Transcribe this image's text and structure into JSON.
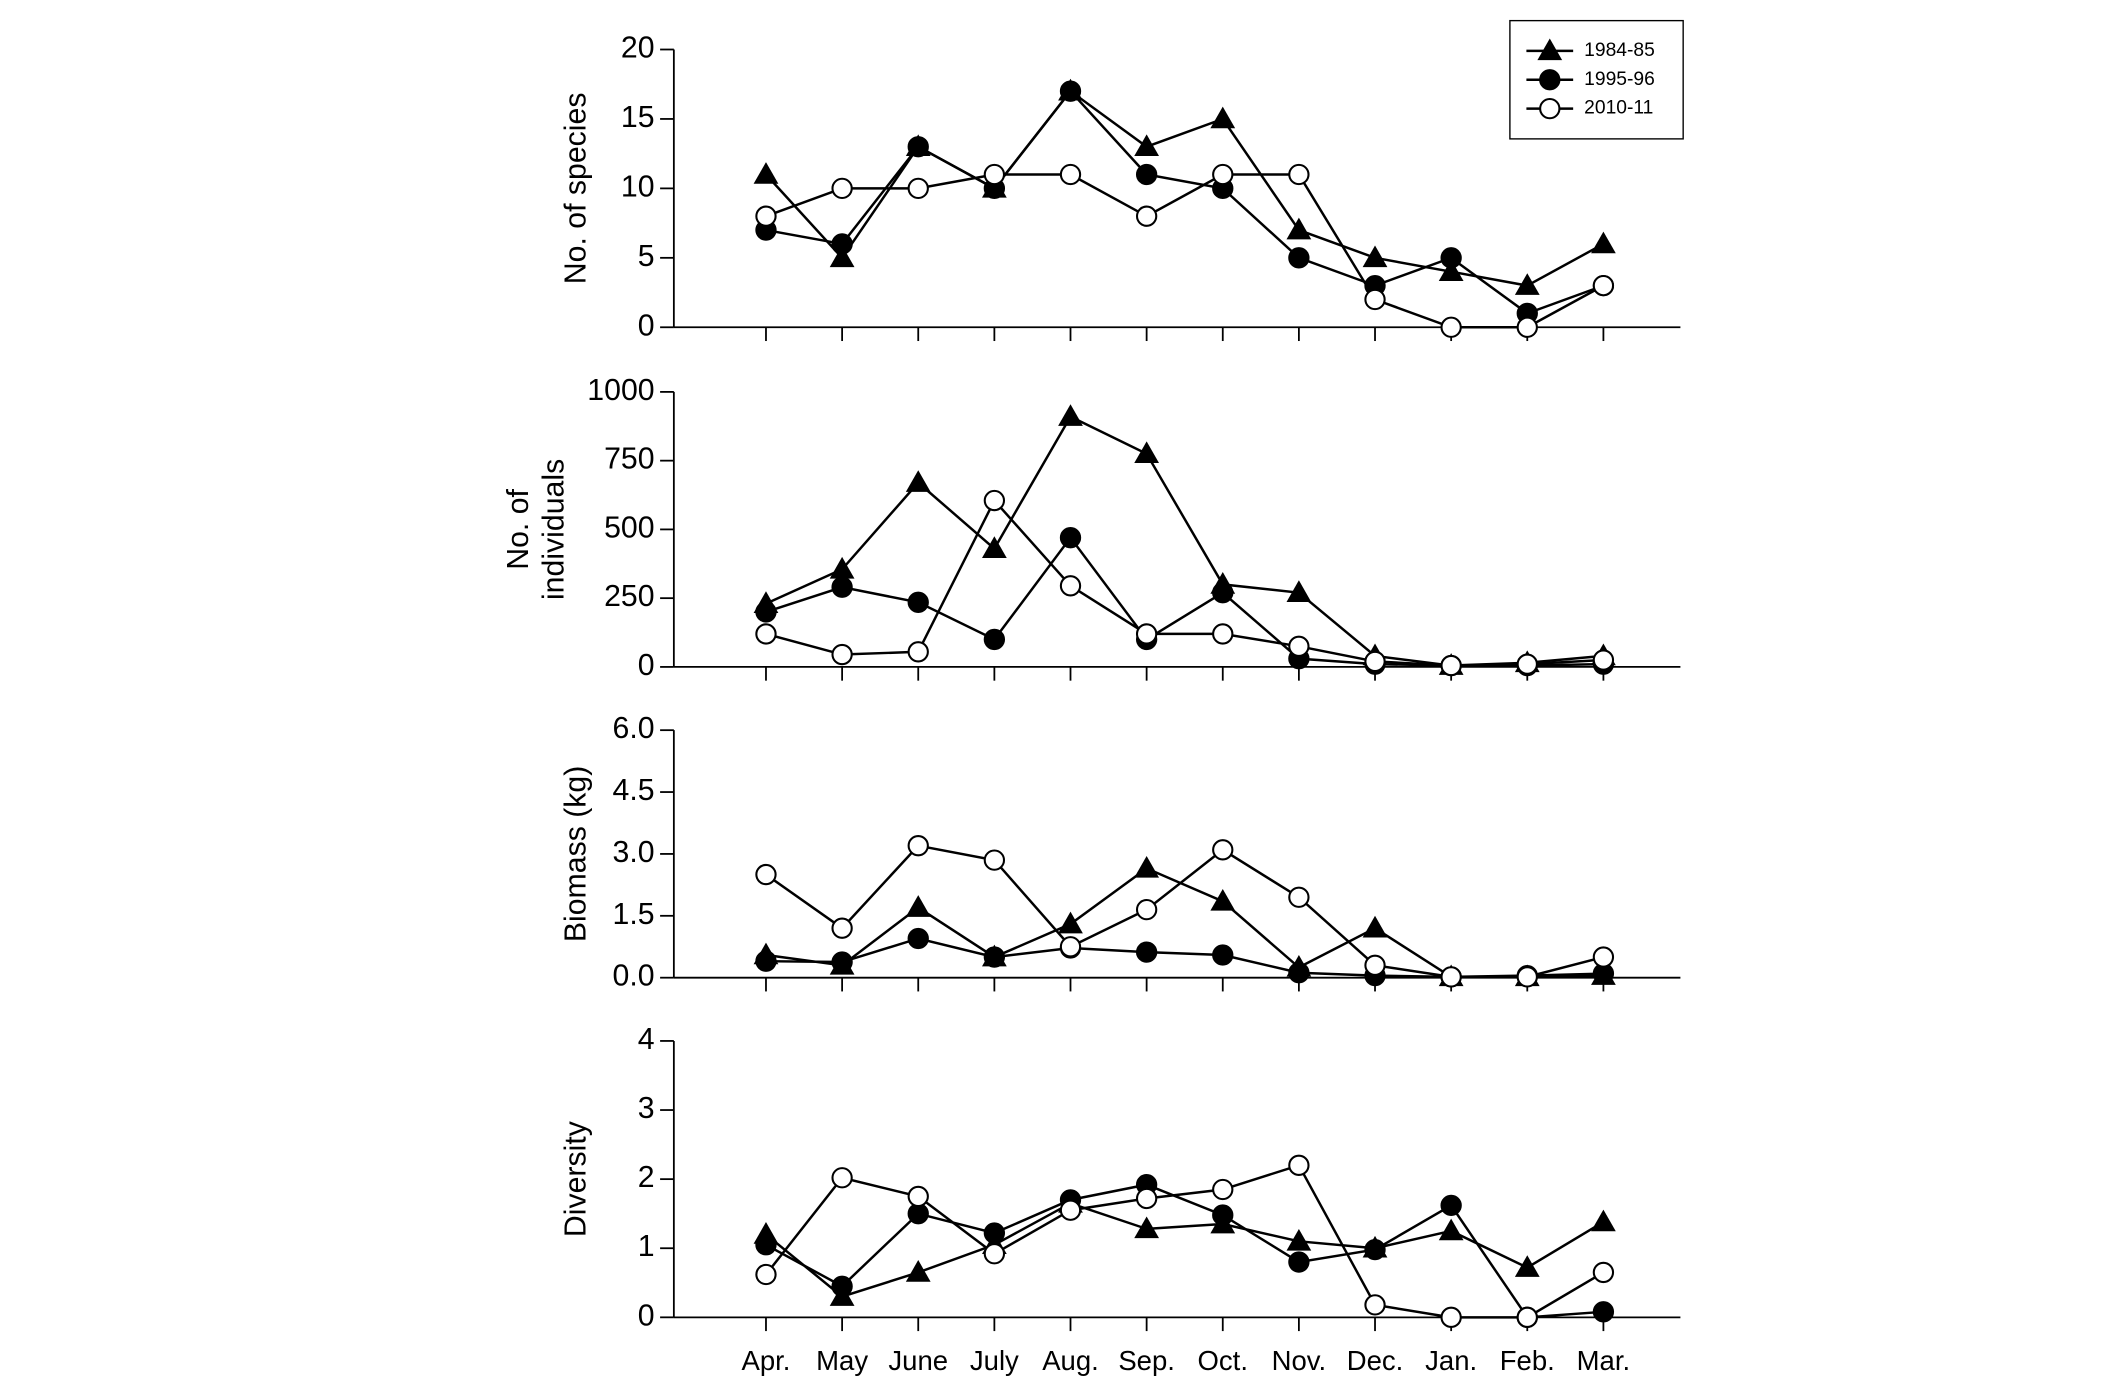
{
  "chart_data": [
    {
      "type": "line",
      "ylabel": "No. of species",
      "ylim": [
        0,
        20
      ],
      "yticks": [
        0,
        5,
        10,
        15,
        20
      ],
      "legend": "top-right",
      "series": [
        {
          "name": "1984-85",
          "color": "#000000",
          "marker": "triangle",
          "values": [
            11,
            5,
            13,
            10,
            17,
            13,
            15,
            7,
            5,
            4,
            3,
            6
          ]
        },
        {
          "name": "1995-96",
          "color": "#000000",
          "marker": "circle",
          "values": [
            7,
            6,
            13,
            10,
            17,
            11,
            10,
            5,
            3,
            5,
            1,
            3
          ]
        },
        {
          "name": "2010-11",
          "color": "#000000",
          "marker": "open-circle",
          "values": [
            8,
            10,
            10,
            11,
            11,
            8,
            11,
            11,
            2,
            0,
            0,
            3
          ]
        }
      ]
    },
    {
      "type": "line",
      "ylabel": [
        "No. of",
        "individuals"
      ],
      "ylim": [
        0,
        1000
      ],
      "yticks": [
        0,
        250,
        500,
        750,
        1000
      ],
      "series": [
        {
          "color": "#000000",
          "marker": "triangle",
          "values": [
            230,
            355,
            670,
            430,
            910,
            775,
            300,
            270,
            40,
            5,
            15,
            40
          ]
        },
        {
          "color": "#000000",
          "marker": "circle",
          "values": [
            200,
            290,
            235,
            100,
            470,
            100,
            270,
            30,
            10,
            5,
            5,
            10
          ]
        },
        {
          "color": "#000000",
          "marker": "open-circle",
          "values": [
            120,
            45,
            55,
            605,
            295,
            120,
            120,
            75,
            20,
            5,
            10,
            25
          ]
        }
      ]
    },
    {
      "type": "line",
      "ylabel": "Biomass (kg)",
      "ylim": [
        0,
        6
      ],
      "yticks": [
        {
          "value": 0,
          "label": "0.0"
        },
        {
          "value": 1.5,
          "label": "1.5"
        },
        {
          "value": 3,
          "label": "3.0"
        },
        {
          "value": 4.5,
          "label": "4.5"
        },
        {
          "value": 6,
          "label": "6.0"
        }
      ],
      "series": [
        {
          "color": "#000000",
          "marker": "triangle",
          "values": [
            0.55,
            0.3,
            1.7,
            0.5,
            1.3,
            2.65,
            1.85,
            0.25,
            1.2,
            0.02,
            0.02,
            0.05
          ]
        },
        {
          "color": "#000000",
          "marker": "circle",
          "values": [
            0.4,
            0.38,
            0.95,
            0.5,
            0.72,
            0.62,
            0.55,
            0.12,
            0.05,
            0.02,
            0.05,
            0.1
          ]
        },
        {
          "color": "#000000",
          "marker": "open-circle",
          "values": [
            2.5,
            1.2,
            3.2,
            2.85,
            0.75,
            1.65,
            3.1,
            1.95,
            0.3,
            0.02,
            0.02,
            0.5
          ]
        }
      ]
    },
    {
      "type": "line",
      "ylabel": "Diversity",
      "ylim": [
        0,
        4
      ],
      "yticks": [
        0,
        1,
        2,
        3,
        4
      ],
      "categories": [
        "Apr.",
        "May",
        "June",
        "July",
        "Aug.",
        "Sep.",
        "Oct.",
        "Nov.",
        "Dec.",
        "Jan.",
        "Feb.",
        "Mar."
      ],
      "series": [
        {
          "color": "#000000",
          "marker": "triangle",
          "values": [
            1.2,
            0.3,
            0.65,
            1.05,
            1.65,
            1.28,
            1.35,
            1.1,
            1.0,
            1.25,
            0.72,
            1.38
          ]
        },
        {
          "color": "#000000",
          "marker": "circle",
          "values": [
            1.05,
            0.45,
            1.5,
            1.22,
            1.7,
            1.92,
            1.48,
            0.8,
            0.98,
            1.62,
            0.0,
            0.08
          ]
        },
        {
          "color": "#000000",
          "marker": "open-circle",
          "values": [
            0.62,
            2.02,
            1.75,
            0.92,
            1.55,
            1.72,
            1.85,
            2.2,
            0.18,
            0.0,
            0.0,
            0.65
          ]
        }
      ]
    }
  ]
}
